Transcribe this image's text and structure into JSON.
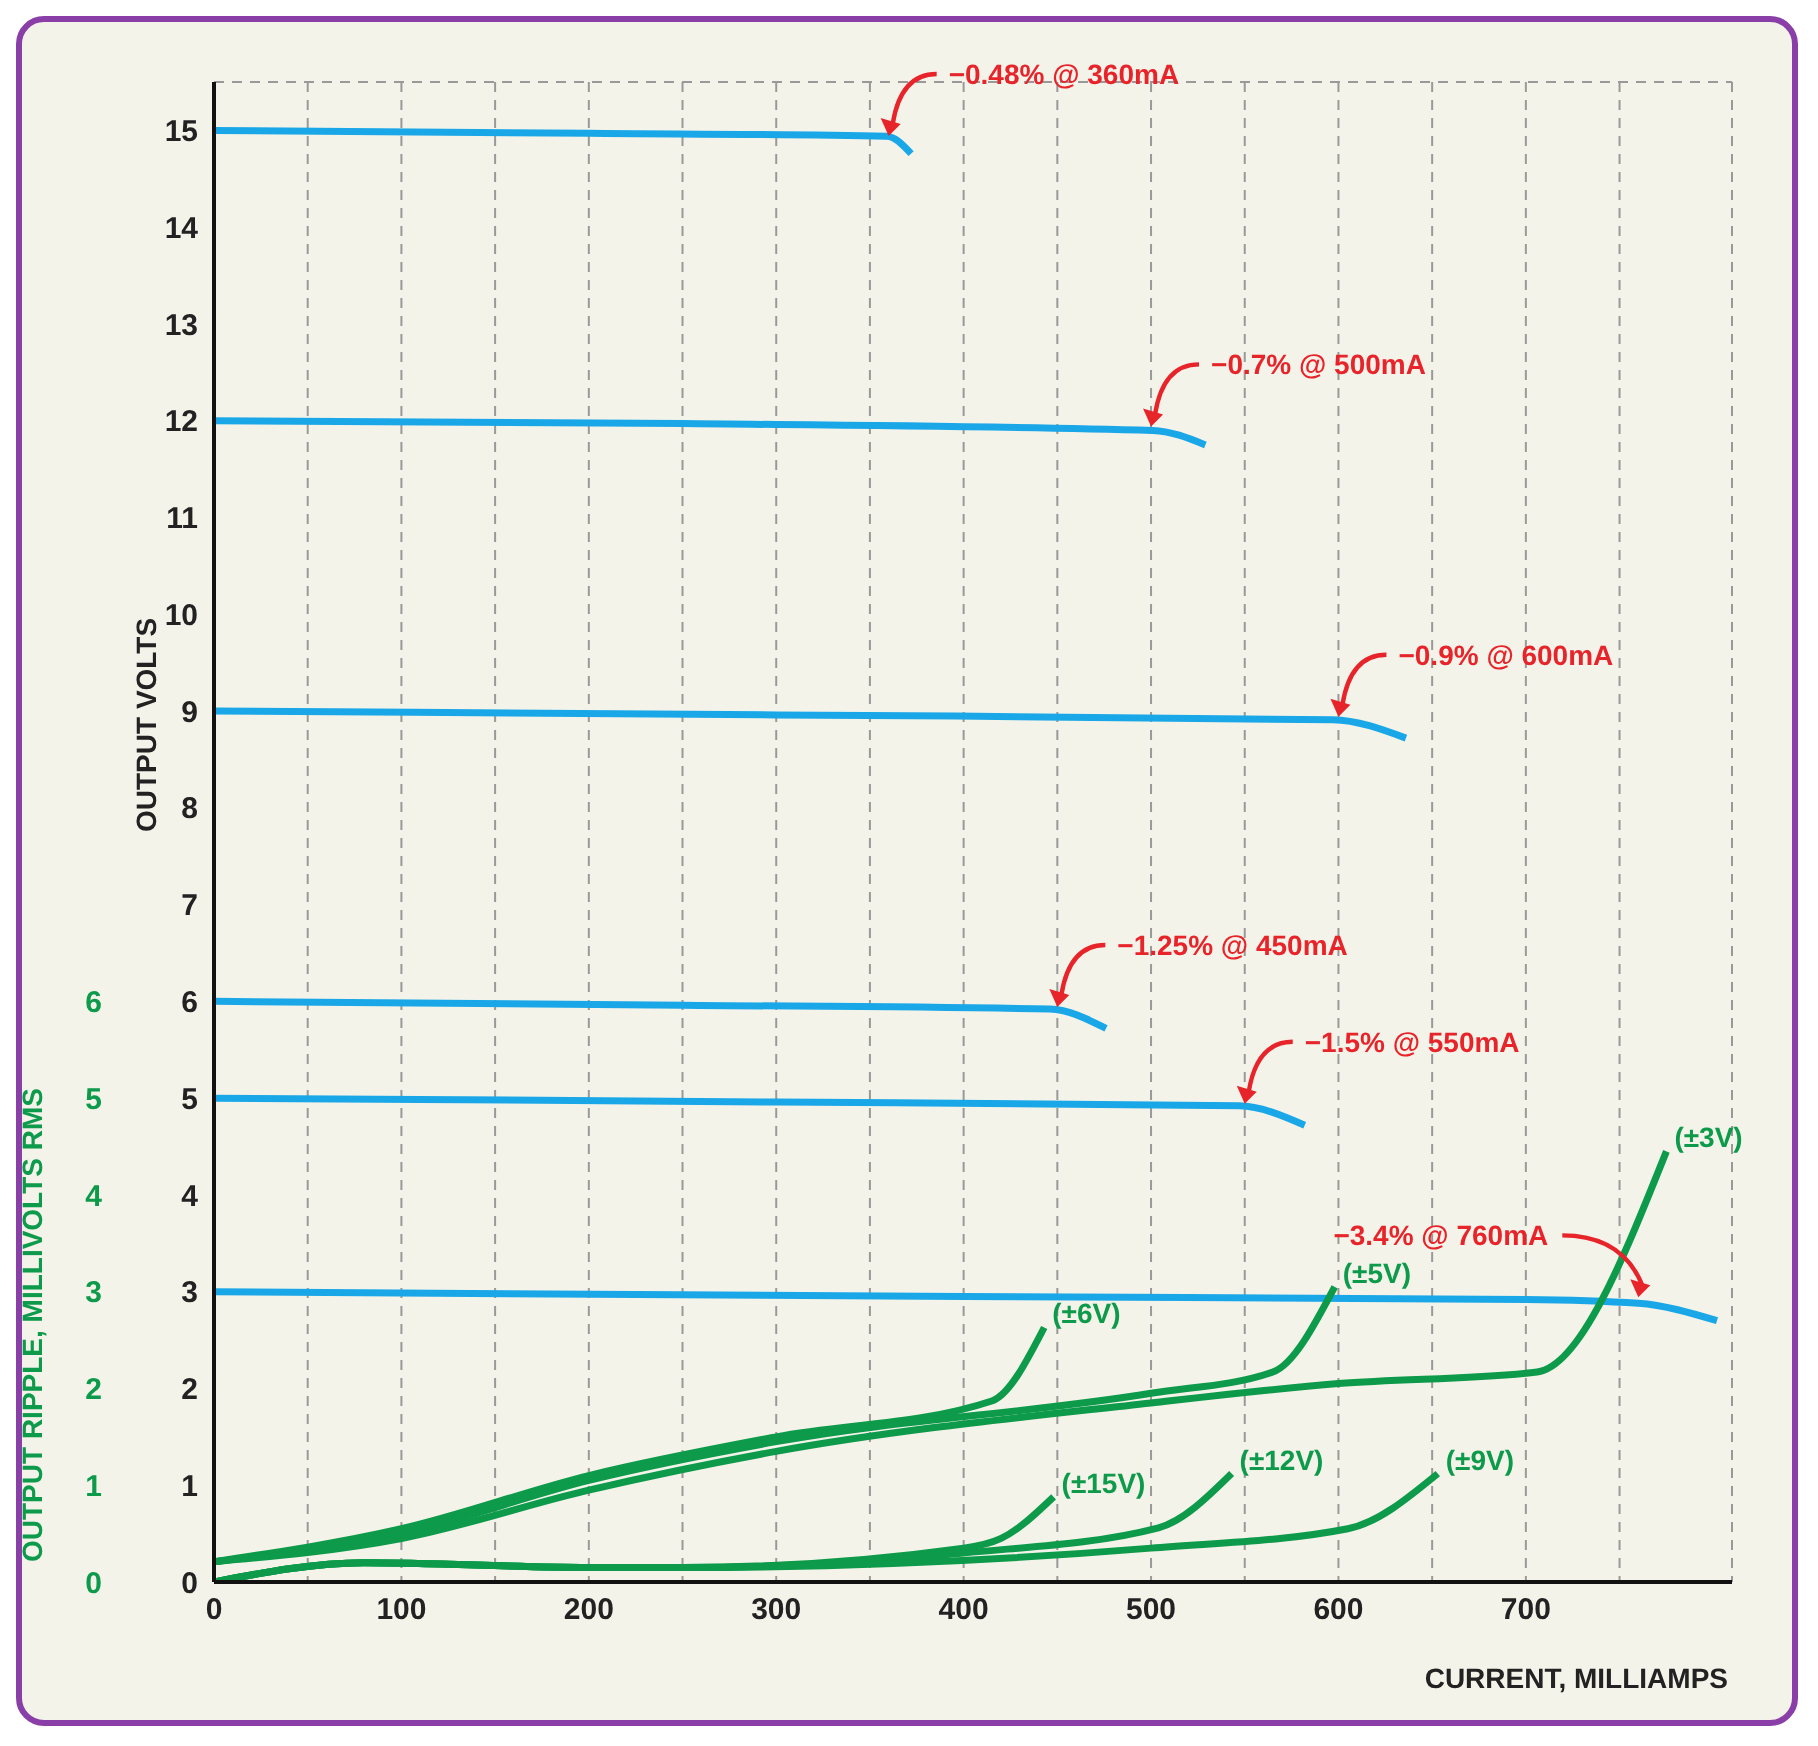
{
  "chart_data": {
    "type": "line",
    "xlabel": "CURRENT, MILLIAMPS",
    "ylabel": "OUTPUT VOLTS",
    "y2label": "OUTPUT RIPPLE, MILLIVOLTS RMS",
    "xlim": [
      0,
      810
    ],
    "xticks": [
      0,
      {
        "value": 50,
        "label": null
      },
      100,
      {
        "value": 150,
        "label": null
      },
      200,
      {
        "value": 250,
        "label": null
      },
      300,
      {
        "value": 350,
        "label": null
      },
      400,
      {
        "value": 450,
        "label": null
      },
      500,
      {
        "value": 550,
        "label": null
      },
      600,
      {
        "value": 650,
        "label": null
      },
      700,
      {
        "value": 750,
        "label": null
      }
    ],
    "ylim": [
      0,
      15.5
    ],
    "yticks": [
      0,
      1,
      2,
      3,
      4,
      5,
      6,
      7,
      8,
      9,
      10,
      11,
      12,
      13,
      14,
      15
    ],
    "y2lim": [
      0,
      15.5
    ],
    "y2ticks": [
      0,
      1,
      2,
      3,
      4,
      5,
      6
    ],
    "grid": true,
    "legend": false,
    "marker": "none",
    "line_style": "solid",
    "series": [
      {
        "color": "#1aa7e8",
        "x": [
          0,
          200,
          359,
          372
        ],
        "values": [
          15.0,
          14.97,
          14.94,
          14.76
        ]
      },
      {
        "color": "#1aa7e8",
        "x": [
          0,
          250,
          501,
          529
        ],
        "values": [
          12.0,
          11.97,
          11.9,
          11.75
        ]
      },
      {
        "color": "#1aa7e8",
        "x": [
          0,
          300,
          597,
          636
        ],
        "values": [
          9.0,
          8.96,
          8.91,
          8.72
        ]
      },
      {
        "color": "#1aa7e8",
        "x": [
          0,
          250,
          446,
          476
        ],
        "values": [
          6.0,
          5.96,
          5.92,
          5.72
        ]
      },
      {
        "color": "#1aa7e8",
        "x": [
          0,
          300,
          547,
          582
        ],
        "values": [
          5.0,
          4.96,
          4.92,
          4.72
        ]
      },
      {
        "color": "#1aa7e8",
        "x": [
          0,
          400,
          700,
          760,
          802
        ],
        "values": [
          3.0,
          2.95,
          2.92,
          2.88,
          2.7
        ]
      },
      {
        "name": "(±6V)",
        "color": "#0d9a4a",
        "x": [
          0,
          100,
          200,
          300,
          415,
          443
        ],
        "values": [
          0.21,
          0.55,
          1.1,
          1.5,
          1.87,
          2.63
        ]
      },
      {
        "name": "(±5V)",
        "color": "#0d9a4a",
        "x": [
          0,
          100,
          200,
          300,
          500,
          565,
          598
        ],
        "values": [
          0.21,
          0.5,
          1.05,
          1.45,
          1.95,
          2.17,
          3.05
        ]
      },
      {
        "name": "(±3V)",
        "color": "#0d9a4a",
        "x": [
          0,
          100,
          200,
          300,
          500,
          600,
          706,
          775
        ],
        "values": [
          0.21,
          0.45,
          0.95,
          1.35,
          1.85,
          2.05,
          2.17,
          4.45
        ]
      },
      {
        "name": "(±15V)",
        "color": "#0d9a4a",
        "x": [
          0,
          80,
          200,
          250,
          400,
          420,
          448
        ],
        "values": [
          0,
          0.2,
          0.15,
          0.15,
          0.35,
          0.45,
          0.88
        ]
      },
      {
        "name": "(±12V)",
        "color": "#0d9a4a",
        "x": [
          0,
          80,
          200,
          250,
          400,
          504,
          543
        ],
        "values": [
          0,
          0.2,
          0.15,
          0.15,
          0.3,
          0.56,
          1.12
        ]
      },
      {
        "name": "(±9V)",
        "color": "#0d9a4a",
        "x": [
          0,
          80,
          200,
          250,
          500,
          605,
          653
        ],
        "values": [
          0,
          0.2,
          0.15,
          0.15,
          0.35,
          0.55,
          1.12
        ]
      }
    ],
    "annotations": [
      {
        "text": "−0.48% @ 360mA",
        "x": 360,
        "y": 14.9
      },
      {
        "text": "−0.7% @ 500mA",
        "x": 500,
        "y": 11.9
      },
      {
        "text": "−0.9% @ 600mA",
        "x": 600,
        "y": 8.9
      },
      {
        "text": "−1.25% @ 450mA",
        "x": 450,
        "y": 5.9
      },
      {
        "text": "−1.5% @ 550mA",
        "x": 550,
        "y": 4.9
      },
      {
        "text": "−3.4% @ 760mA",
        "x": 760,
        "y": 2.9
      }
    ]
  }
}
